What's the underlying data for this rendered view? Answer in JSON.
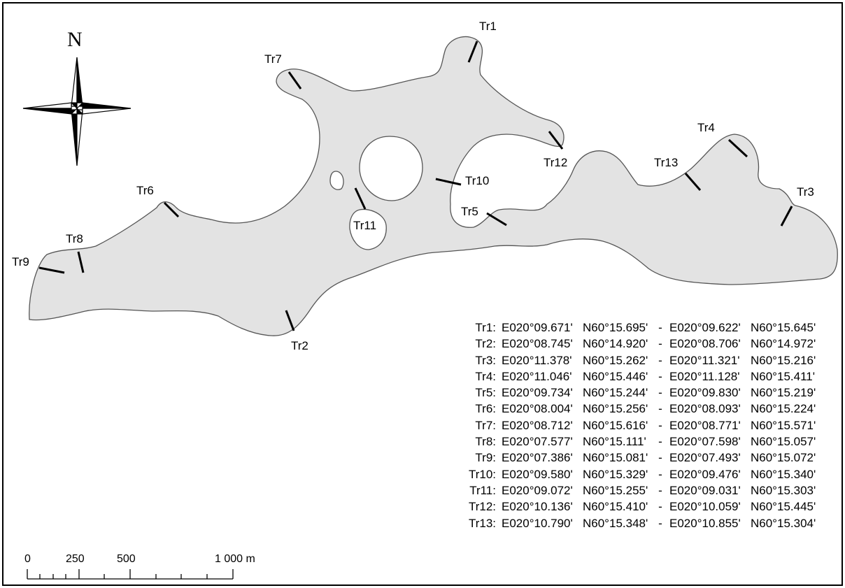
{
  "map": {
    "north_label": "N",
    "fill_color": "#e3e3e3",
    "outline_color": "#555555",
    "transects": [
      {
        "id": "Tr1"
      },
      {
        "id": "Tr2"
      },
      {
        "id": "Tr3"
      },
      {
        "id": "Tr4"
      },
      {
        "id": "Tr5"
      },
      {
        "id": "Tr6"
      },
      {
        "id": "Tr7"
      },
      {
        "id": "Tr8"
      },
      {
        "id": "Tr9"
      },
      {
        "id": "Tr10"
      },
      {
        "id": "Tr11"
      },
      {
        "id": "Tr12"
      },
      {
        "id": "Tr13"
      }
    ]
  },
  "scale_bar": {
    "labels": [
      "0",
      "250",
      "500",
      "1 000 m"
    ]
  },
  "coordinates_table": [
    {
      "id": "Tr1:",
      "e1": "E020°09.671'",
      "n1": "N60°15.695'",
      "sep": "-",
      "e2": "E020°09.622'",
      "n2": "N60°15.645'"
    },
    {
      "id": "Tr2:",
      "e1": "E020°08.745'",
      "n1": "N60°14.920'",
      "sep": "-",
      "e2": "E020°08.706'",
      "n2": "N60°14.972'"
    },
    {
      "id": "Tr3:",
      "e1": "E020°11.378'",
      "n1": "N60°15.262'",
      "sep": "-",
      "e2": "E020°11.321'",
      "n2": "N60°15.216'"
    },
    {
      "id": "Tr4:",
      "e1": "E020°11.046'",
      "n1": "N60°15.446'",
      "sep": "-",
      "e2": "E020°11.128'",
      "n2": "N60°15.411'"
    },
    {
      "id": "Tr5:",
      "e1": "E020°09.734'",
      "n1": "N60°15.244'",
      "sep": "-",
      "e2": "E020°09.830'",
      "n2": "N60°15.219'"
    },
    {
      "id": "Tr6:",
      "e1": "E020°08.004'",
      "n1": "N60°15.256'",
      "sep": "-",
      "e2": "E020°08.093'",
      "n2": "N60°15.224'"
    },
    {
      "id": "Tr7:",
      "e1": "E020°08.712'",
      "n1": "N60°15.616'",
      "sep": "-",
      "e2": "E020°08.771'",
      "n2": "N60°15.571'"
    },
    {
      "id": "Tr8:",
      "e1": "E020°07.577'",
      "n1": "N60°15.111'",
      "sep": "-",
      "e2": "E020°07.598'",
      "n2": "N60°15.057'"
    },
    {
      "id": "Tr9:",
      "e1": "E020°07.386'",
      "n1": "N60°15.081'",
      "sep": "-",
      "e2": "E020°07.493'",
      "n2": "N60°15.072'"
    },
    {
      "id": "Tr10:",
      "e1": "E020°09.580'",
      "n1": "N60°15.329'",
      "sep": "-",
      "e2": "E020°09.476'",
      "n2": "N60°15.340'"
    },
    {
      "id": "Tr11:",
      "e1": "E020°09.072'",
      "n1": "N60°15.255'",
      "sep": "-",
      "e2": "E020°09.031'",
      "n2": "N60°15.303'"
    },
    {
      "id": "Tr12:",
      "e1": "E020°10.136'",
      "n1": "N60°15.410'",
      "sep": "-",
      "e2": "E020°10.059'",
      "n2": "N60°15.445'"
    },
    {
      "id": "Tr13:",
      "e1": "E020°10.790'",
      "n1": "N60°15.348'",
      "sep": "-",
      "e2": "E020°10.855'",
      "n2": "N60°15.304'"
    }
  ]
}
